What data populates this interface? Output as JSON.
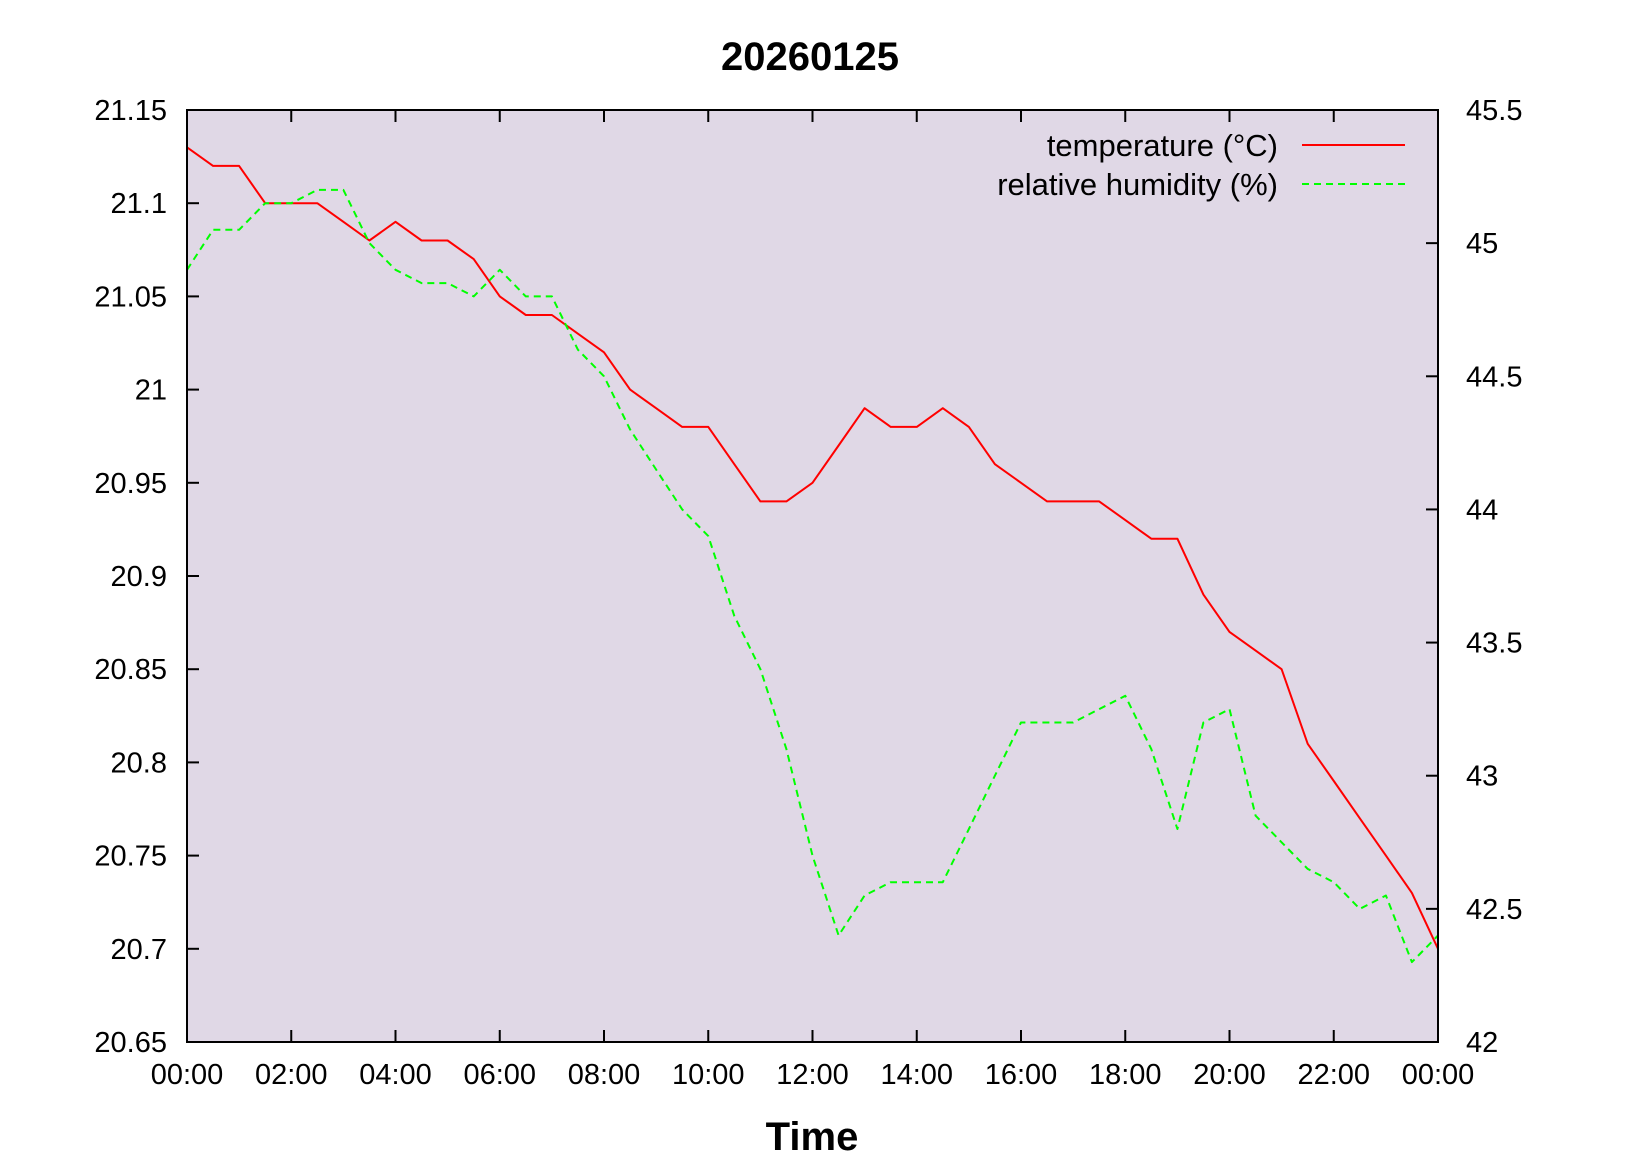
{
  "chart_data": {
    "type": "line",
    "title": "20260125",
    "xlabel": "Time",
    "ylabel": "",
    "y2label": "",
    "x_ticks": [
      "00:00",
      "02:00",
      "04:00",
      "06:00",
      "08:00",
      "10:00",
      "12:00",
      "14:00",
      "16:00",
      "18:00",
      "20:00",
      "22:00",
      "00:00"
    ],
    "x_range_hours": [
      0,
      24
    ],
    "ylim": [
      20.65,
      21.15
    ],
    "y_ticks": [
      "20.65",
      "20.7",
      "20.75",
      "20.8",
      "20.85",
      "20.9",
      "20.95",
      "21",
      "21.05",
      "21.1",
      "21.15"
    ],
    "y2lim": [
      42,
      45.5
    ],
    "y2_ticks": [
      "42",
      "42.5",
      "43",
      "43.5",
      "44",
      "44.5",
      "45",
      "45.5"
    ],
    "plot_background": "#e0d8e6",
    "legend_position": "top-right",
    "series": [
      {
        "name": "temperature (°C)",
        "axis": "left",
        "color": "#ff0000",
        "style": "solid",
        "hours": [
          0,
          0.5,
          1,
          1.5,
          2,
          2.5,
          3,
          3.5,
          4,
          4.5,
          5,
          5.5,
          6,
          6.5,
          7,
          7.5,
          8,
          8.5,
          9,
          9.5,
          10,
          10.5,
          11,
          11.5,
          12,
          12.5,
          13,
          13.5,
          14,
          14.5,
          15,
          15.5,
          16,
          16.5,
          17,
          17.5,
          18,
          18.5,
          19,
          19.5,
          20,
          20.5,
          21,
          21.5,
          22,
          22.5,
          23,
          23.5,
          24
        ],
        "values": [
          21.13,
          21.12,
          21.12,
          21.1,
          21.1,
          21.1,
          21.09,
          21.08,
          21.09,
          21.08,
          21.08,
          21.07,
          21.05,
          21.04,
          21.04,
          21.03,
          21.02,
          21.0,
          20.99,
          20.98,
          20.98,
          20.96,
          20.94,
          20.94,
          20.95,
          20.97,
          20.99,
          20.98,
          20.98,
          20.99,
          20.98,
          20.96,
          20.95,
          20.94,
          20.94,
          20.94,
          20.93,
          20.92,
          20.92,
          20.89,
          20.87,
          20.86,
          20.85,
          20.81,
          20.79,
          20.77,
          20.75,
          20.73,
          20.7
        ]
      },
      {
        "name": "relative humidity (%)",
        "axis": "right",
        "color": "#00ff00",
        "style": "dashed",
        "hours": [
          0,
          0.5,
          1,
          1.5,
          2,
          2.5,
          3,
          3.5,
          4,
          4.5,
          5,
          5.5,
          6,
          6.5,
          7,
          7.5,
          8,
          8.5,
          9,
          9.5,
          10,
          10.5,
          11,
          11.5,
          12,
          12.5,
          13,
          13.5,
          14,
          14.5,
          15,
          15.5,
          16,
          16.5,
          17,
          17.5,
          18,
          18.5,
          19,
          19.5,
          20,
          20.5,
          21,
          21.5,
          22,
          22.5,
          23,
          23.5,
          24
        ],
        "values": [
          44.9,
          45.05,
          45.05,
          45.15,
          45.15,
          45.2,
          45.2,
          45.0,
          44.9,
          44.85,
          44.85,
          44.8,
          44.9,
          44.8,
          44.8,
          44.6,
          44.5,
          44.3,
          44.15,
          44.0,
          43.9,
          43.6,
          43.4,
          43.1,
          42.7,
          42.4,
          42.55,
          42.6,
          42.6,
          42.6,
          42.8,
          43.0,
          43.2,
          43.2,
          43.2,
          43.25,
          43.3,
          43.1,
          42.8,
          43.2,
          43.25,
          42.85,
          42.75,
          42.65,
          42.6,
          42.5,
          42.55,
          42.3,
          42.4
        ]
      }
    ]
  }
}
